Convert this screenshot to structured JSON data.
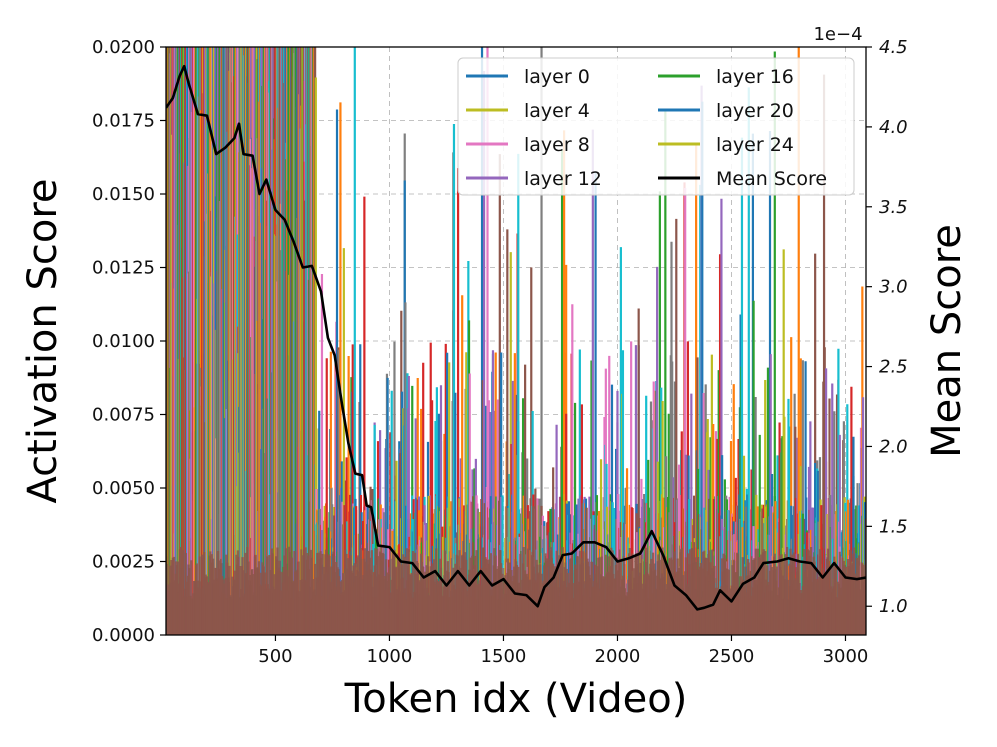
{
  "chart_data": {
    "type": "line",
    "xlabel": "Token idx (Video)",
    "ylabel_left": "Activation Score",
    "ylabel_right": "Mean Score",
    "right_axis_multiplier": "1e−4",
    "xlim": [
      20,
      3090
    ],
    "ylim_left": [
      0,
      0.02
    ],
    "ylim_right": [
      0.82,
      4.5
    ],
    "xticks": [
      500,
      1000,
      1500,
      2000,
      2500,
      3000
    ],
    "xtick_labels": [
      "500",
      "1000",
      "1500",
      "2000",
      "2500",
      "3000"
    ],
    "yticks_left": [
      0,
      0.0025,
      0.005,
      0.0075,
      0.01,
      0.0125,
      0.015,
      0.0175,
      0.02
    ],
    "ytick_labels_left": [
      "0.0000",
      "0.0025",
      "0.0050",
      "0.0075",
      "0.0100",
      "0.0125",
      "0.0150",
      "0.0175",
      "0.0200"
    ],
    "yticks_right": [
      1.0,
      1.5,
      2.0,
      2.5,
      3.0,
      3.5,
      4.0,
      4.5
    ],
    "ytick_labels_right": [
      "1.0",
      "1.5",
      "2.0",
      "2.5",
      "3.0",
      "3.5",
      "4.0",
      "4.5"
    ],
    "grid": true,
    "legend_position": "top-right",
    "legend_columns": 2,
    "series": [
      {
        "name": "layer 0",
        "color": "#1f77b4",
        "axis": "left"
      },
      {
        "name": "layer 4",
        "color": "#bcbd22",
        "axis": "left"
      },
      {
        "name": "layer 8",
        "color": "#e377c2",
        "axis": "left"
      },
      {
        "name": "layer 12",
        "color": "#9467bd",
        "axis": "left"
      },
      {
        "name": "layer 16",
        "color": "#2ca02c",
        "axis": "left"
      },
      {
        "name": "layer 20",
        "color": "#1f77b4",
        "axis": "left"
      },
      {
        "name": "layer 24",
        "color": "#bcbd22",
        "axis": "left"
      },
      {
        "name": "Mean Score",
        "color": "#000000",
        "axis": "right",
        "x": [
          20,
          50,
          80,
          100,
          120,
          160,
          200,
          240,
          280,
          320,
          340,
          360,
          400,
          430,
          460,
          500,
          540,
          580,
          620,
          660,
          700,
          730,
          760,
          790,
          820,
          850,
          880,
          900,
          920,
          950,
          1000,
          1050,
          1100,
          1150,
          1200,
          1250,
          1300,
          1350,
          1400,
          1450,
          1500,
          1550,
          1600,
          1650,
          1680,
          1720,
          1760,
          1800,
          1850,
          1900,
          1950,
          2000,
          2050,
          2100,
          2150,
          2180,
          2200,
          2250,
          2300,
          2350,
          2380,
          2420,
          2450,
          2500,
          2550,
          2600,
          2640,
          2700,
          2750,
          2800,
          2850,
          2900,
          2950,
          3000,
          3050,
          3090
        ],
        "values": [
          4.1,
          4.2,
          4.3,
          4.4,
          4.25,
          4.1,
          4.05,
          3.85,
          3.85,
          3.95,
          4.0,
          3.85,
          3.8,
          3.6,
          3.65,
          3.5,
          3.4,
          3.3,
          3.1,
          3.15,
          2.95,
          2.7,
          2.55,
          2.3,
          2.0,
          1.85,
          1.8,
          1.65,
          1.6,
          1.4,
          1.35,
          1.3,
          1.25,
          1.2,
          1.2,
          1.15,
          1.2,
          1.15,
          1.2,
          1.15,
          1.15,
          1.1,
          1.05,
          1.02,
          1.1,
          1.2,
          1.3,
          1.35,
          1.38,
          1.42,
          1.35,
          1.3,
          1.28,
          1.35,
          1.45,
          1.4,
          1.3,
          1.15,
          1.05,
          1.0,
          0.97,
          1.03,
          1.08,
          1.05,
          1.12,
          1.2,
          1.25,
          1.3,
          1.28,
          1.3,
          1.25,
          1.2,
          1.25,
          1.2,
          1.15,
          1.2
        ]
      }
    ]
  }
}
